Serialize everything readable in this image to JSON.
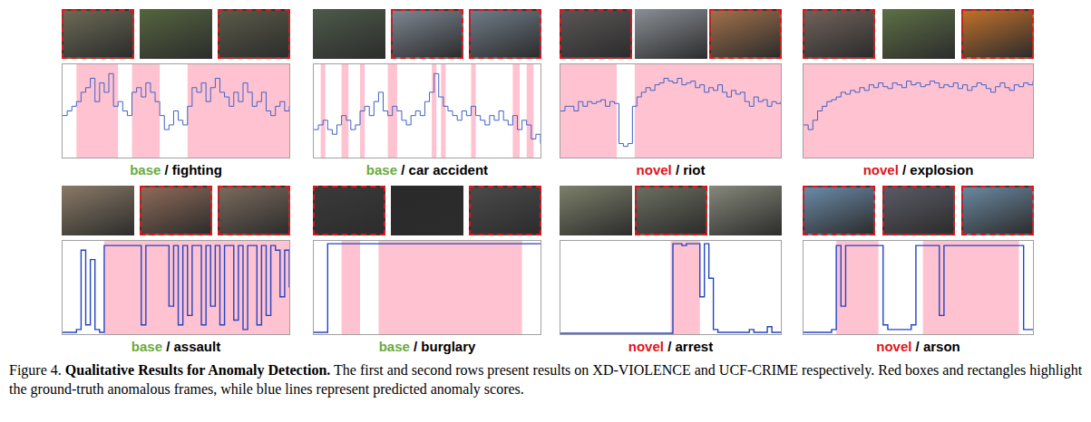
{
  "chart_data": [
    {
      "type": "line",
      "title": "base / fighting",
      "frames": [
        true,
        false,
        true
      ],
      "line_style": "step",
      "color": "#3f63c4",
      "tick_labels": false,
      "xlim": [
        0,
        49
      ],
      "ylim": [
        0,
        1
      ],
      "anomalous": [
        [
          3,
          12
        ],
        [
          15,
          21
        ],
        [
          27,
          49
        ]
      ],
      "values": [
        0.45,
        0.5,
        0.55,
        0.6,
        0.7,
        0.75,
        0.85,
        0.6,
        0.8,
        0.7,
        0.9,
        0.55,
        0.6,
        0.5,
        0.45,
        0.7,
        0.75,
        0.65,
        0.8,
        0.7,
        0.6,
        0.45,
        0.3,
        0.35,
        0.5,
        0.4,
        0.35,
        0.55,
        0.75,
        0.7,
        0.8,
        0.6,
        0.75,
        0.85,
        0.7,
        0.65,
        0.55,
        0.7,
        0.6,
        0.8,
        0.7,
        0.55,
        0.6,
        0.7,
        0.5,
        0.45,
        0.55,
        0.6,
        0.5,
        0.55
      ]
    },
    {
      "type": "line",
      "title": "base / car accident",
      "frames": [
        false,
        true,
        true
      ],
      "line_style": "step",
      "color": "#3f63c4",
      "tick_labels": false,
      "xlim": [
        0,
        49
      ],
      "ylim": [
        0,
        1
      ],
      "anomalous": [
        [
          1.5,
          2.5
        ],
        [
          6,
          7.5
        ],
        [
          10,
          11
        ],
        [
          16,
          18
        ],
        [
          25.5,
          26.5
        ],
        [
          27.5,
          28.5
        ],
        [
          34,
          35
        ],
        [
          43,
          44.5
        ],
        [
          46,
          47.5
        ]
      ],
      "values": [
        0.3,
        0.35,
        0.4,
        0.3,
        0.25,
        0.35,
        0.45,
        0.4,
        0.3,
        0.35,
        0.5,
        0.55,
        0.45,
        0.6,
        0.7,
        0.5,
        0.45,
        0.55,
        0.5,
        0.4,
        0.35,
        0.45,
        0.5,
        0.45,
        0.6,
        0.7,
        0.9,
        0.65,
        0.55,
        0.5,
        0.45,
        0.4,
        0.5,
        0.45,
        0.55,
        0.45,
        0.4,
        0.35,
        0.45,
        0.4,
        0.5,
        0.4,
        0.35,
        0.45,
        0.3,
        0.4,
        0.35,
        0.2,
        0.25,
        0.15
      ]
    },
    {
      "type": "line",
      "title": "novel / riot",
      "frames": [
        true,
        false,
        true
      ],
      "line_style": "step",
      "color": "#3f63c4",
      "tick_labels": false,
      "xlim": [
        0,
        49
      ],
      "ylim": [
        0,
        1
      ],
      "anomalous": [
        [
          0,
          12.5
        ],
        [
          16.5,
          49
        ]
      ],
      "values": [
        0.5,
        0.55,
        0.55,
        0.5,
        0.6,
        0.55,
        0.6,
        0.58,
        0.6,
        0.62,
        0.55,
        0.6,
        0.58,
        0.15,
        0.12,
        0.15,
        0.55,
        0.65,
        0.7,
        0.75,
        0.72,
        0.78,
        0.8,
        0.85,
        0.82,
        0.8,
        0.85,
        0.78,
        0.8,
        0.82,
        0.75,
        0.78,
        0.7,
        0.75,
        0.72,
        0.78,
        0.7,
        0.65,
        0.72,
        0.68,
        0.7,
        0.6,
        0.55,
        0.65,
        0.6,
        0.62,
        0.55,
        0.6,
        0.58,
        0.6
      ]
    },
    {
      "type": "line",
      "title": "novel / explosion",
      "frames": [
        true,
        false,
        true
      ],
      "line_style": "step",
      "color": "#3f63c4",
      "tick_labels": false,
      "xlim": [
        0,
        49
      ],
      "ylim": [
        0,
        1
      ],
      "anomalous": [
        [
          0,
          49
        ]
      ],
      "values": [
        0.35,
        0.3,
        0.4,
        0.5,
        0.55,
        0.6,
        0.62,
        0.65,
        0.7,
        0.68,
        0.72,
        0.7,
        0.75,
        0.72,
        0.78,
        0.75,
        0.8,
        0.76,
        0.74,
        0.8,
        0.78,
        0.75,
        0.82,
        0.78,
        0.8,
        0.76,
        0.78,
        0.82,
        0.8,
        0.75,
        0.78,
        0.76,
        0.8,
        0.74,
        0.78,
        0.72,
        0.76,
        0.8,
        0.78,
        0.74,
        0.7,
        0.76,
        0.8,
        0.75,
        0.72,
        0.78,
        0.76,
        0.8,
        0.78,
        0.82
      ]
    },
    {
      "type": "line",
      "title": "base / assault",
      "frames": [
        false,
        true,
        true
      ],
      "line_style": "step",
      "color": "#2346c0",
      "tick_labels": false,
      "xlim": [
        0,
        49
      ],
      "ylim": [
        0,
        1
      ],
      "anomalous": [
        [
          9,
          49
        ]
      ],
      "values": [
        0.02,
        0.02,
        0.02,
        0.05,
        0.9,
        0.1,
        0.8,
        0.05,
        0.02,
        0.95,
        0.95,
        0.95,
        0.95,
        0.95,
        0.95,
        0.95,
        0.95,
        0.1,
        0.95,
        0.95,
        0.95,
        0.95,
        0.95,
        0.3,
        0.95,
        0.1,
        0.95,
        0.2,
        0.95,
        0.95,
        0.1,
        0.95,
        0.3,
        0.95,
        0.1,
        0.95,
        0.95,
        0.15,
        0.95,
        0.05,
        0.95,
        0.95,
        0.1,
        0.95,
        0.2,
        0.95,
        0.9,
        0.4,
        0.9,
        0.5
      ]
    },
    {
      "type": "line",
      "title": "base / burglary",
      "frames": [
        true,
        false,
        true
      ],
      "line_style": "step",
      "color": "#2346c0",
      "tick_labels": false,
      "xlim": [
        0,
        49
      ],
      "ylim": [
        0,
        1
      ],
      "anomalous": [
        [
          6,
          10
        ],
        [
          14,
          45
        ]
      ],
      "values": [
        0.02,
        0.02,
        0.02,
        0.97,
        0.97,
        0.97,
        0.97,
        0.97,
        0.97,
        0.97,
        0.97,
        0.97,
        0.97,
        0.97,
        0.97,
        0.97,
        0.97,
        0.97,
        0.97,
        0.97,
        0.97,
        0.97,
        0.97,
        0.97,
        0.97,
        0.97,
        0.97,
        0.97,
        0.97,
        0.97,
        0.97,
        0.97,
        0.97,
        0.97,
        0.97,
        0.97,
        0.97,
        0.97,
        0.97,
        0.97,
        0.97,
        0.97,
        0.97,
        0.97,
        0.97,
        0.97,
        0.97,
        0.97,
        0.97,
        0.97
      ]
    },
    {
      "type": "line",
      "title": "novel / arrest",
      "frames": [
        false,
        true,
        false
      ],
      "line_style": "step",
      "color": "#2346c0",
      "tick_labels": false,
      "xlim": [
        0,
        49
      ],
      "ylim": [
        0,
        1
      ],
      "anomalous": [
        [
          24.5,
          31
        ]
      ],
      "values": [
        0.01,
        0.01,
        0.01,
        0.01,
        0.01,
        0.01,
        0.01,
        0.01,
        0.01,
        0.01,
        0.01,
        0.01,
        0.01,
        0.01,
        0.01,
        0.01,
        0.01,
        0.01,
        0.01,
        0.01,
        0.01,
        0.01,
        0.01,
        0.01,
        0.01,
        0.97,
        0.97,
        0.95,
        0.97,
        0.97,
        0.97,
        0.4,
        0.97,
        0.6,
        0.05,
        0.02,
        0.02,
        0.02,
        0.02,
        0.02,
        0.02,
        0.02,
        0.05,
        0.02,
        0.02,
        0.02,
        0.08,
        0.02,
        0.02,
        0.02
      ]
    },
    {
      "type": "line",
      "title": "novel / arson",
      "frames": [
        true,
        true,
        true
      ],
      "line_style": "step",
      "color": "#2346c0",
      "tick_labels": false,
      "xlim": [
        0,
        49
      ],
      "ylim": [
        0,
        1
      ],
      "anomalous": [
        [
          7,
          16
        ],
        [
          25.5,
          46
        ]
      ],
      "values": [
        0.02,
        0.02,
        0.02,
        0.02,
        0.02,
        0.02,
        0.05,
        0.95,
        0.3,
        0.95,
        0.95,
        0.95,
        0.95,
        0.95,
        0.95,
        0.95,
        0.95,
        0.1,
        0.05,
        0.05,
        0.05,
        0.05,
        0.05,
        0.1,
        0.95,
        0.95,
        0.95,
        0.95,
        0.95,
        0.2,
        0.95,
        0.95,
        0.95,
        0.95,
        0.95,
        0.95,
        0.95,
        0.95,
        0.95,
        0.95,
        0.95,
        0.95,
        0.95,
        0.95,
        0.95,
        0.95,
        0.95,
        0.05,
        0.05,
        0.05
      ]
    }
  ],
  "caption": {
    "label": "Figure 4.",
    "title": "Qualitative Results for Anomaly Detection.",
    "text": "The first and second rows present results on XD-VIOLENCE and UCF-CRIME respectively. Red boxes and rectangles highlight the ground-truth anomalous frames, while blue lines represent predicted anomaly scores."
  }
}
